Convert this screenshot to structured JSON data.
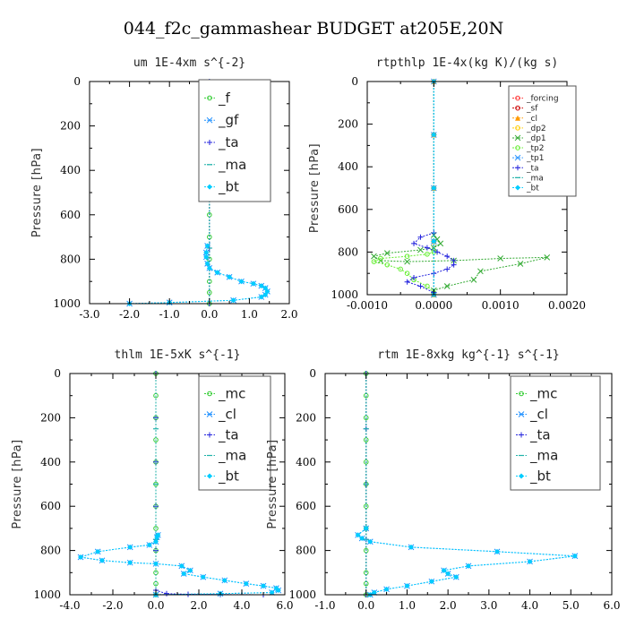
{
  "figure_title": "044_f2c_gammashear  BUDGET at205E,20N",
  "chart_data": [
    {
      "type": "line",
      "title": "um   1E-4xm s^{-2}",
      "ylabel": "Pressure [hPa]",
      "xlim": [
        -3.0,
        2.0
      ],
      "ylim": [
        1000,
        0
      ],
      "xticks": [
        "-3.0",
        "-2.0",
        "-1.0",
        "0.0",
        "1.0",
        "2.0"
      ],
      "xtick_values": [
        -3.0,
        -2.0,
        -1.0,
        0.0,
        1.0,
        2.0
      ],
      "yticks": [
        "0",
        "200",
        "400",
        "600",
        "800",
        "1000"
      ],
      "ytick_values": [
        0,
        200,
        400,
        600,
        800,
        1000
      ],
      "legend_position": "top-right",
      "legend_size": "big",
      "series": [
        {
          "name": "_f",
          "color": "#33cc33",
          "marker": "ring",
          "x": [
            0.0,
            0.0,
            0.0,
            0.0,
            0.0,
            0.0,
            0.0,
            0.0,
            0.0,
            0.0,
            0.0,
            0.0
          ],
          "y": [
            0,
            100,
            200,
            300,
            400,
            500,
            600,
            700,
            800,
            900,
            950,
            1000
          ]
        },
        {
          "name": "_gf",
          "color": "#1e90ff",
          "marker": "x",
          "x": [
            -0.05,
            -0.08,
            -0.08,
            -0.05,
            0.0,
            0.2,
            0.5,
            0.8,
            1.1,
            1.3,
            1.4,
            1.45,
            1.4,
            1.3,
            0.6,
            -1.0,
            -2.0
          ],
          "y": [
            740,
            770,
            790,
            820,
            840,
            860,
            880,
            900,
            910,
            920,
            930,
            945,
            960,
            970,
            985,
            995,
            1000
          ]
        },
        {
          "name": "_ta",
          "color": "#2222dd",
          "marker": "plus",
          "x": [
            0.0,
            0.0,
            0.0,
            0.0,
            0.0
          ],
          "y": [
            0,
            250,
            500,
            750,
            1000
          ]
        },
        {
          "name": "_ma",
          "color": "#20b2aa",
          "marker": "dash",
          "x": [
            0.0,
            0.0,
            0.0,
            0.0,
            0.0
          ],
          "y": [
            0,
            250,
            500,
            750,
            1000
          ]
        },
        {
          "name": "_bt",
          "color": "#00ccff",
          "marker": "diamond",
          "x": [
            -0.05,
            -0.08,
            -0.08,
            -0.05,
            0.0,
            0.2,
            0.5,
            0.8,
            1.1,
            1.3,
            1.4,
            1.45,
            1.4,
            1.3,
            0.6,
            -1.0,
            -2.0
          ],
          "y": [
            740,
            770,
            790,
            820,
            840,
            860,
            880,
            900,
            910,
            920,
            930,
            945,
            960,
            970,
            985,
            995,
            1000
          ]
        }
      ]
    },
    {
      "type": "line",
      "title": "rtpthlp   1E-4x(kg K)/(kg s)",
      "ylabel": "Pressure [hPa]",
      "xlim": [
        -0.001,
        0.002
      ],
      "ylim": [
        1000,
        0
      ],
      "xticks": [
        "-0.0010",
        "0.0000",
        "0.0010",
        "0.0020"
      ],
      "xtick_values": [
        -0.001,
        0.0,
        0.001,
        0.002
      ],
      "yticks": [
        "0",
        "200",
        "400",
        "600",
        "800",
        "1000"
      ],
      "ytick_values": [
        0,
        200,
        400,
        600,
        800,
        1000
      ],
      "legend_position": "top-right",
      "legend_size": "small",
      "series": [
        {
          "name": "_forcing",
          "color": "#ff3333",
          "marker": "ring",
          "x": [
            0.0,
            0.0,
            0.0,
            0.0,
            0.0
          ],
          "y": [
            0,
            250,
            500,
            750,
            1000
          ]
        },
        {
          "name": "_sf",
          "color": "#cc0000",
          "marker": "ring",
          "x": [
            0.0,
            0.0,
            0.0,
            0.0,
            0.0
          ],
          "y": [
            0,
            250,
            500,
            750,
            1000
          ]
        },
        {
          "name": "_cl",
          "color": "#ff9900",
          "marker": "tri",
          "x": [
            0.0,
            0.0,
            0.0,
            0.0,
            0.0
          ],
          "y": [
            0,
            250,
            500,
            750,
            1000
          ]
        },
        {
          "name": "_dp2",
          "color": "#ffcc00",
          "marker": "ring",
          "x": [
            0.0,
            0.0,
            0.0,
            0.0,
            0.0
          ],
          "y": [
            0,
            250,
            500,
            750,
            1000
          ]
        },
        {
          "name": "_dp1",
          "color": "#33aa33",
          "marker": "x",
          "x": [
            0.0,
            5e-05,
            0.0001,
            0.0,
            -0.0002,
            -0.0007,
            -0.0009,
            -0.0008,
            -0.0004,
            0.0003,
            0.001,
            0.0017,
            0.0013,
            0.0007,
            0.0006,
            0.0002,
            0.0,
            0.0
          ],
          "y": [
            720,
            740,
            760,
            780,
            790,
            805,
            820,
            840,
            845,
            840,
            830,
            825,
            855,
            890,
            930,
            960,
            980,
            1000
          ]
        },
        {
          "name": "_tp2",
          "color": "#66ee33",
          "marker": "ring",
          "x": [
            0.0,
            -0.0001,
            -0.0004,
            -0.0008,
            -0.0009,
            -0.0007,
            -0.0005,
            -0.0004,
            -0.0003,
            -0.0001,
            0.0
          ],
          "y": [
            800,
            810,
            820,
            830,
            845,
            860,
            880,
            900,
            930,
            960,
            990
          ]
        },
        {
          "name": "_tp1",
          "color": "#3399ff",
          "marker": "x",
          "x": [
            0.0,
            0.0,
            0.0,
            0.0,
            0.0
          ],
          "y": [
            0,
            250,
            500,
            750,
            1000
          ]
        },
        {
          "name": "_ta",
          "color": "#2222dd",
          "marker": "plus",
          "x": [
            0.0,
            -0.0002,
            -0.0003,
            -0.0001,
            5e-05,
            0.0002,
            0.0003,
            0.0003,
            0.0002,
            0.0,
            -0.0003,
            -0.0004,
            -0.0002,
            0.0
          ],
          "y": [
            710,
            730,
            760,
            780,
            800,
            820,
            840,
            860,
            880,
            900,
            920,
            940,
            960,
            990
          ]
        },
        {
          "name": "_ma",
          "color": "#20b2aa",
          "marker": "dash",
          "x": [
            0.0,
            0.0,
            0.0,
            0.0,
            0.0
          ],
          "y": [
            0,
            250,
            500,
            750,
            1000
          ]
        },
        {
          "name": "_bt",
          "color": "#00ccff",
          "marker": "diamond",
          "x": [
            0.0,
            0.0,
            0.0,
            0.0,
            0.0
          ],
          "y": [
            0,
            250,
            500,
            750,
            1000
          ]
        }
      ]
    },
    {
      "type": "line",
      "title": "thlm   1E-5xK s^{-1}",
      "ylabel": "Pressure [hPa]",
      "xlim": [
        -4.0,
        6.0
      ],
      "ylim": [
        1000,
        0
      ],
      "xticks": [
        "-4.0",
        "-2.0",
        "0.0",
        "2.0",
        "4.0",
        "6.0"
      ],
      "xtick_values": [
        -4.0,
        -2.0,
        0.0,
        2.0,
        4.0,
        6.0
      ],
      "yticks": [
        "0",
        "200",
        "400",
        "600",
        "800",
        "1000"
      ],
      "ytick_values": [
        0,
        200,
        400,
        600,
        800,
        1000
      ],
      "legend_position": "top-right",
      "legend_size": "big",
      "series": [
        {
          "name": "_mc",
          "color": "#33cc33",
          "marker": "ring",
          "x": [
            0.0,
            0.0,
            0.0,
            0.0,
            0.0,
            0.0,
            0.0,
            0.0,
            0.0,
            0.0,
            0.0,
            0.0
          ],
          "y": [
            0,
            100,
            200,
            300,
            400,
            500,
            600,
            700,
            800,
            900,
            950,
            1000
          ]
        },
        {
          "name": "_cl",
          "color": "#1e90ff",
          "marker": "x",
          "x": [
            0.1,
            0.05,
            0.0,
            -0.3,
            -1.2,
            -2.7,
            -3.5,
            -2.5,
            -1.2,
            0.0,
            1.2,
            1.6,
            1.3,
            2.2,
            3.2,
            4.2,
            5.0,
            5.6,
            5.7,
            5.4,
            3.0,
            0.0
          ],
          "y": [
            730,
            740,
            760,
            775,
            785,
            805,
            830,
            845,
            855,
            860,
            870,
            890,
            905,
            920,
            935,
            950,
            960,
            970,
            980,
            990,
            995,
            1000
          ]
        },
        {
          "name": "_ta",
          "color": "#2222dd",
          "marker": "plus",
          "x": [
            0.0,
            0.0,
            0.0,
            0.0,
            0.0,
            0.0,
            0.5,
            1.5,
            3.0,
            5.0
          ],
          "y": [
            0,
            200,
            400,
            600,
            800,
            980,
            995,
            998,
            999,
            1000
          ]
        },
        {
          "name": "_ma",
          "color": "#20b2aa",
          "marker": "dash",
          "x": [
            0.0,
            0.0,
            0.0,
            0.0,
            0.0
          ],
          "y": [
            0,
            250,
            500,
            750,
            1000
          ]
        },
        {
          "name": "_bt",
          "color": "#00ccff",
          "marker": "diamond",
          "x": [
            0.1,
            0.05,
            0.0,
            -0.3,
            -1.2,
            -2.7,
            -3.5,
            -2.5,
            -1.2,
            0.0,
            1.2,
            1.6,
            1.3,
            2.2,
            3.2,
            4.2,
            5.0,
            5.6,
            5.7,
            5.4,
            3.0,
            0.0
          ],
          "y": [
            730,
            740,
            760,
            775,
            785,
            805,
            830,
            845,
            855,
            860,
            870,
            890,
            905,
            920,
            935,
            950,
            960,
            970,
            980,
            990,
            995,
            1000
          ]
        }
      ]
    },
    {
      "type": "line",
      "title": "rtm   1E-8xkg kg^{-1} s^{-1}",
      "ylabel": "Pressure [hPa]",
      "xlim": [
        -1.0,
        6.0
      ],
      "ylim": [
        1000,
        0
      ],
      "xticks": [
        "-1.0",
        "0.0",
        "1.0",
        "2.0",
        "3.0",
        "4.0",
        "5.0",
        "6.0"
      ],
      "xtick_values": [
        -1.0,
        0.0,
        1.0,
        2.0,
        3.0,
        4.0,
        5.0,
        6.0
      ],
      "yticks": [
        "0",
        "200",
        "400",
        "600",
        "800",
        "1000"
      ],
      "ytick_values": [
        0,
        200,
        400,
        600,
        800,
        1000
      ],
      "legend_position": "top-right",
      "legend_size": "big",
      "series": [
        {
          "name": "_mc",
          "color": "#33cc33",
          "marker": "ring",
          "x": [
            0.0,
            0.0,
            0.0,
            0.0,
            0.0,
            0.0,
            0.0,
            0.0,
            0.0,
            0.0,
            0.0,
            0.0
          ],
          "y": [
            0,
            100,
            200,
            300,
            400,
            500,
            600,
            700,
            800,
            900,
            950,
            1000
          ]
        },
        {
          "name": "_cl",
          "color": "#1e90ff",
          "marker": "x",
          "x": [
            0.0,
            -0.2,
            -0.1,
            0.1,
            1.1,
            3.2,
            5.1,
            4.0,
            2.5,
            1.9,
            2.0,
            2.2,
            1.6,
            1.0,
            0.5,
            0.2,
            0.1
          ],
          "y": [
            700,
            730,
            745,
            760,
            785,
            805,
            825,
            850,
            870,
            890,
            905,
            920,
            940,
            960,
            975,
            990,
            1000
          ]
        },
        {
          "name": "_ta",
          "color": "#2222dd",
          "marker": "plus",
          "x": [
            0.0,
            0.0,
            0.0,
            0.0,
            0.0
          ],
          "y": [
            0,
            250,
            500,
            750,
            1000
          ]
        },
        {
          "name": "_ma",
          "color": "#20b2aa",
          "marker": "dash",
          "x": [
            0.0,
            0.0,
            0.0,
            0.0,
            0.0
          ],
          "y": [
            0,
            250,
            500,
            750,
            1000
          ]
        },
        {
          "name": "_bt",
          "color": "#00ccff",
          "marker": "diamond",
          "x": [
            0.0,
            -0.2,
            -0.1,
            0.1,
            1.1,
            3.2,
            5.1,
            4.0,
            2.5,
            1.9,
            2.0,
            2.2,
            1.6,
            1.0,
            0.5,
            0.2,
            0.1
          ],
          "y": [
            700,
            730,
            745,
            760,
            785,
            805,
            825,
            850,
            870,
            890,
            905,
            920,
            940,
            960,
            975,
            990,
            1000
          ]
        }
      ]
    }
  ]
}
